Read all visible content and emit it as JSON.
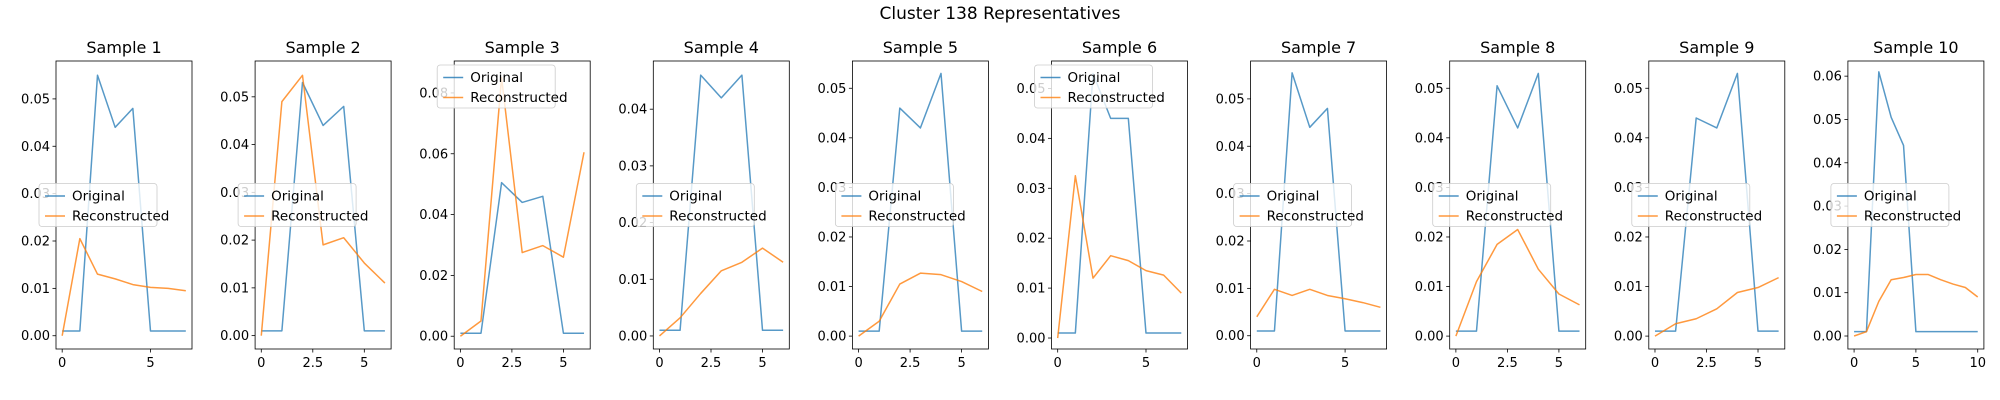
{
  "figure_title": "Cluster 138 Representatives",
  "legend": {
    "labels": [
      "Original",
      "Reconstructed"
    ],
    "colors": [
      "#1f77b4",
      "#ff7f0e"
    ]
  },
  "chart_data": [
    {
      "type": "line",
      "title": "Sample 1",
      "xlim": [
        -0.35,
        7.35
      ],
      "ylim": [
        -0.0028,
        0.058
      ],
      "xticks": [
        0,
        5
      ],
      "yticks": [
        0.0,
        0.01,
        0.02,
        0.03,
        0.04,
        0.05
      ],
      "ytick_labels": [
        "0.00",
        "0.01",
        "0.02",
        "0.03",
        "0.04",
        "0.05"
      ],
      "x": [
        0,
        1,
        2,
        3,
        4,
        5,
        6,
        7
      ],
      "legend_loc": "center left",
      "series": [
        {
          "name": "Original",
          "values": [
            0.001,
            0.001,
            0.055,
            0.044,
            0.048,
            0.001,
            0.001,
            0.001
          ]
        },
        {
          "name": "Reconstructed",
          "values": [
            0.0,
            0.0205,
            0.013,
            0.012,
            0.0108,
            0.0102,
            0.01,
            0.0095
          ]
        }
      ]
    },
    {
      "type": "line",
      "title": "Sample 2",
      "xlim": [
        -0.3,
        6.3
      ],
      "ylim": [
        -0.0028,
        0.0575
      ],
      "xticks": [
        0,
        2.5,
        5
      ],
      "yticks": [
        0.0,
        0.01,
        0.02,
        0.03,
        0.04,
        0.05
      ],
      "ytick_labels": [
        "0.00",
        "0.01",
        "0.02",
        "0.03",
        "0.04",
        "0.05"
      ],
      "x": [
        0,
        1,
        2,
        3,
        4,
        5,
        6
      ],
      "legend_loc": "center left",
      "series": [
        {
          "name": "Original",
          "values": [
            0.001,
            0.001,
            0.053,
            0.044,
            0.048,
            0.001,
            0.001
          ]
        },
        {
          "name": "Reconstructed",
          "values": [
            0.0,
            0.049,
            0.0545,
            0.019,
            0.0205,
            0.0152,
            0.011
          ]
        }
      ]
    },
    {
      "type": "line",
      "title": "Sample 3",
      "xlim": [
        -0.3,
        6.3
      ],
      "ylim": [
        -0.0042,
        0.0905
      ],
      "xticks": [
        0,
        2.5,
        5
      ],
      "yticks": [
        0.0,
        0.02,
        0.04,
        0.06,
        0.08
      ],
      "ytick_labels": [
        "0.00",
        "0.02",
        "0.04",
        "0.06",
        "0.08"
      ],
      "x": [
        0,
        1,
        2,
        3,
        4,
        5,
        6
      ],
      "legend_loc": "upper left",
      "series": [
        {
          "name": "Original",
          "values": [
            0.001,
            0.001,
            0.0505,
            0.044,
            0.046,
            0.001,
            0.001
          ]
        },
        {
          "name": "Reconstructed",
          "values": [
            0.0,
            0.005,
            0.085,
            0.0275,
            0.0298,
            0.026,
            0.0605
          ]
        }
      ]
    },
    {
      "type": "line",
      "title": "Sample 4",
      "xlim": [
        -0.3,
        6.3
      ],
      "ylim": [
        -0.0023,
        0.0485
      ],
      "xticks": [
        0,
        2.5,
        5
      ],
      "yticks": [
        0.0,
        0.01,
        0.02,
        0.03,
        0.04
      ],
      "ytick_labels": [
        "0.00",
        "0.01",
        "0.02",
        "0.03",
        "0.04"
      ],
      "x": [
        0,
        1,
        2,
        3,
        4,
        5,
        6
      ],
      "legend_loc": "center left",
      "series": [
        {
          "name": "Original",
          "values": [
            0.001,
            0.001,
            0.046,
            0.042,
            0.046,
            0.001,
            0.001
          ]
        },
        {
          "name": "Reconstructed",
          "values": [
            0.0,
            0.0032,
            0.0075,
            0.0115,
            0.013,
            0.0155,
            0.013
          ]
        }
      ]
    },
    {
      "type": "line",
      "title": "Sample 5",
      "xlim": [
        -0.3,
        6.3
      ],
      "ylim": [
        -0.0026,
        0.0555
      ],
      "xticks": [
        0,
        2.5,
        5
      ],
      "yticks": [
        0.0,
        0.01,
        0.02,
        0.03,
        0.04,
        0.05
      ],
      "ytick_labels": [
        "0.00",
        "0.01",
        "0.02",
        "0.03",
        "0.04",
        "0.05"
      ],
      "x": [
        0,
        1,
        2,
        3,
        4,
        5,
        6
      ],
      "legend_loc": "center left",
      "series": [
        {
          "name": "Original",
          "values": [
            0.001,
            0.001,
            0.046,
            0.042,
            0.053,
            0.001,
            0.001
          ]
        },
        {
          "name": "Reconstructed",
          "values": [
            0.0,
            0.003,
            0.0105,
            0.0127,
            0.0124,
            0.011,
            0.009
          ]
        }
      ]
    },
    {
      "type": "line",
      "title": "Sample 6",
      "xlim": [
        -0.35,
        7.35
      ],
      "ylim": [
        -0.0022,
        0.0555
      ],
      "xticks": [
        0,
        5
      ],
      "yticks": [
        0.0,
        0.01,
        0.02,
        0.03,
        0.04,
        0.05
      ],
      "ytick_labels": [
        "0.00",
        "0.01",
        "0.02",
        "0.03",
        "0.04",
        "0.05"
      ],
      "x": [
        0,
        1,
        2,
        3,
        4,
        5,
        6,
        7
      ],
      "legend_loc": "upper left",
      "series": [
        {
          "name": "Original",
          "values": [
            0.001,
            0.001,
            0.053,
            0.044,
            0.044,
            0.001,
            0.001,
            0.001
          ]
        },
        {
          "name": "Reconstructed",
          "values": [
            0.0,
            0.0325,
            0.012,
            0.0165,
            0.0155,
            0.0135,
            0.0126,
            0.009
          ]
        }
      ]
    },
    {
      "type": "line",
      "title": "Sample 7",
      "xlim": [
        -0.35,
        7.35
      ],
      "ylim": [
        -0.0028,
        0.058
      ],
      "xticks": [
        0,
        5
      ],
      "yticks": [
        0.0,
        0.01,
        0.02,
        0.03,
        0.04,
        0.05
      ],
      "ytick_labels": [
        "0.00",
        "0.01",
        "0.02",
        "0.03",
        "0.04",
        "0.05"
      ],
      "x": [
        0,
        1,
        2,
        3,
        4,
        5,
        6,
        7
      ],
      "legend_loc": "center left",
      "series": [
        {
          "name": "Original",
          "values": [
            0.001,
            0.001,
            0.0555,
            0.044,
            0.048,
            0.001,
            0.001,
            0.001
          ]
        },
        {
          "name": "Reconstructed",
          "values": [
            0.004,
            0.0098,
            0.0085,
            0.0098,
            0.0085,
            0.0078,
            0.007,
            0.006
          ]
        }
      ]
    },
    {
      "type": "line",
      "title": "Sample 8",
      "xlim": [
        -0.3,
        6.3
      ],
      "ylim": [
        -0.0026,
        0.0555
      ],
      "xticks": [
        0,
        2.5,
        5
      ],
      "yticks": [
        0.0,
        0.01,
        0.02,
        0.03,
        0.04,
        0.05
      ],
      "ytick_labels": [
        "0.00",
        "0.01",
        "0.02",
        "0.03",
        "0.04",
        "0.05"
      ],
      "x": [
        0,
        1,
        2,
        3,
        4,
        5,
        6
      ],
      "legend_loc": "center left",
      "series": [
        {
          "name": "Original",
          "values": [
            0.001,
            0.001,
            0.0505,
            0.042,
            0.053,
            0.001,
            0.001
          ]
        },
        {
          "name": "Reconstructed",
          "values": [
            0.0,
            0.011,
            0.0185,
            0.0215,
            0.0135,
            0.0085,
            0.0063
          ]
        }
      ]
    },
    {
      "type": "line",
      "title": "Sample 9",
      "xlim": [
        -0.3,
        6.3
      ],
      "ylim": [
        -0.0026,
        0.0555
      ],
      "xticks": [
        0,
        2.5,
        5
      ],
      "yticks": [
        0.0,
        0.01,
        0.02,
        0.03,
        0.04,
        0.05
      ],
      "ytick_labels": [
        "0.00",
        "0.01",
        "0.02",
        "0.03",
        "0.04",
        "0.05"
      ],
      "x": [
        0,
        1,
        2,
        3,
        4,
        5,
        6
      ],
      "legend_loc": "center left",
      "series": [
        {
          "name": "Original",
          "values": [
            0.001,
            0.001,
            0.044,
            0.042,
            0.053,
            0.001,
            0.001
          ]
        },
        {
          "name": "Reconstructed",
          "values": [
            0.0,
            0.0025,
            0.0035,
            0.0055,
            0.0088,
            0.0098,
            0.0118
          ]
        }
      ]
    },
    {
      "type": "line",
      "title": "Sample 10",
      "xlim": [
        -0.5,
        10.5
      ],
      "ylim": [
        -0.003,
        0.0635
      ],
      "xticks": [
        0,
        5,
        10
      ],
      "yticks": [
        0.0,
        0.01,
        0.02,
        0.03,
        0.04,
        0.05,
        0.06
      ],
      "ytick_labels": [
        "0.00",
        "0.01",
        "0.02",
        "0.03",
        "0.04",
        "0.05",
        "0.06"
      ],
      "x": [
        0,
        1,
        2,
        3,
        4,
        5,
        6,
        7,
        8,
        9,
        10
      ],
      "legend_loc": "center left",
      "series": [
        {
          "name": "Original",
          "values": [
            0.001,
            0.001,
            0.061,
            0.0505,
            0.044,
            0.001,
            0.001,
            0.001,
            0.001,
            0.001,
            0.001
          ]
        },
        {
          "name": "Reconstructed",
          "values": [
            0.0,
            0.001,
            0.008,
            0.013,
            0.0135,
            0.0142,
            0.0142,
            0.013,
            0.012,
            0.0112,
            0.009
          ]
        }
      ]
    }
  ]
}
